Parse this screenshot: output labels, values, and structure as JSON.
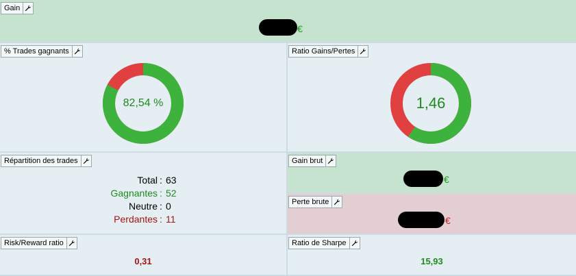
{
  "gain": {
    "title": "Gain",
    "currency": "€"
  },
  "trades_pct": {
    "title": "% Trades gagnants",
    "value_text": "82,54 %",
    "win_fraction": 0.8254,
    "colors": {
      "win": "#3db33d",
      "loss": "#e04040"
    }
  },
  "ratio": {
    "title": "Ratio Gains/Pertes",
    "value_text": "1,46",
    "win_fraction": 0.594,
    "colors": {
      "win": "#3db33d",
      "loss": "#e04040"
    }
  },
  "repartition": {
    "title": "Répartition des trades",
    "rows": [
      {
        "label": "Total",
        "value": "63"
      },
      {
        "label": "Gagnantes",
        "value": "52"
      },
      {
        "label": "Neutre",
        "value": "0"
      },
      {
        "label": "Perdantes",
        "value": "11"
      }
    ]
  },
  "gain_brut": {
    "title": "Gain brut",
    "currency": "€"
  },
  "perte_brute": {
    "title": "Perte brute",
    "currency": "€"
  },
  "risk_reward": {
    "title": "Risk/Reward ratio",
    "value": "0,31"
  },
  "sharpe": {
    "title": "Ratio de Sharpe",
    "value": "15,93"
  },
  "icons": {
    "tool": "wrench-icon"
  }
}
